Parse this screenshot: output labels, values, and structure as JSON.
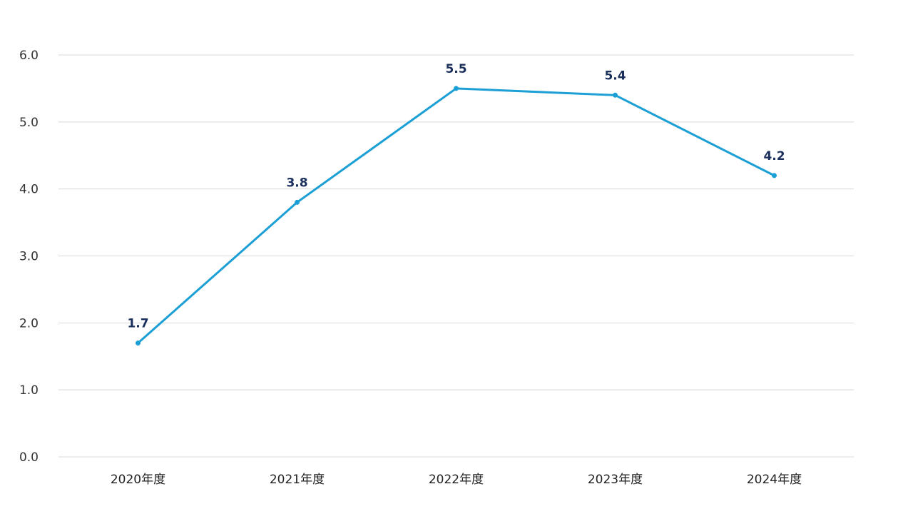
{
  "chart_data": {
    "type": "line",
    "categories": [
      "2020年度",
      "2021年度",
      "2022年度",
      "2023年度",
      "2024年度"
    ],
    "series": [
      {
        "values": [
          1.7,
          3.8,
          5.5,
          5.4,
          4.2
        ]
      }
    ],
    "data_labels": [
      "1.7",
      "3.8",
      "5.5",
      "5.4",
      "4.2"
    ],
    "y_ticks": [
      "0.0",
      "1.0",
      "2.0",
      "3.0",
      "4.0",
      "5.0",
      "6.0"
    ],
    "ylim": [
      0,
      6
    ],
    "grid": true,
    "line_color": "#1b9fd4",
    "label_color": "#1a2e5c"
  }
}
